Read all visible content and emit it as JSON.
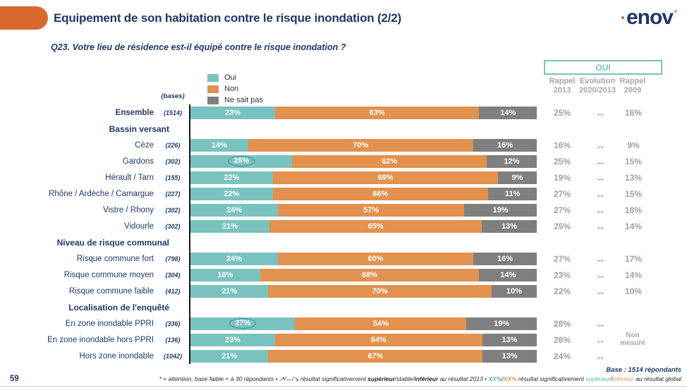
{
  "colors": {
    "navy": "#1F3864",
    "teal": "#79C2BF",
    "orange": "#E2914E",
    "gray": "#7F7F7F",
    "pill_orange": "#D7692F",
    "muted_gray": "#A6A6A6",
    "circle_teal": "#2E8F8C"
  },
  "header": {
    "title": "Equipement de son habitation contre le risque inondation (2/2)",
    "logo_text": "enov"
  },
  "question": "Q23. Votre lieu de résidence est-il équipé contre le risque inondation ?",
  "legend": [
    {
      "label": "Oui",
      "color": "#79C2BF"
    },
    {
      "label": "Non",
      "color": "#E2914E"
    },
    {
      "label": "Ne sait pas",
      "color": "#7F7F7F"
    }
  ],
  "bases_label": "(bases)",
  "right_columns": {
    "box_label": "OUI",
    "col1_line1": "Rappel",
    "col1_line2": "2013",
    "col2_line1": "Evolution",
    "col2_line2": "2020/2013",
    "col3_line1": "Rappel",
    "col3_line2": "2009",
    "non_mesure": "Non mesuré"
  },
  "rows": [
    {
      "type": "data",
      "label": "Ensemble",
      "bold": true,
      "base": "(1514)",
      "oui": 23,
      "non": 63,
      "nsp": 14,
      "circled": false,
      "r2013": "25%",
      "evo": "↔",
      "r2009": "16%"
    },
    {
      "type": "header",
      "label": "Bassin versant"
    },
    {
      "type": "data",
      "label": "Cèze",
      "bold": false,
      "base": "(226)",
      "oui": 14,
      "non": 70,
      "nsp": 16,
      "circled": false,
      "r2013": "16%",
      "evo": "↔",
      "r2009": "9%"
    },
    {
      "type": "data",
      "label": "Gardons",
      "bold": false,
      "base": "(302)",
      "oui": 26,
      "non": 62,
      "nsp": 12,
      "circled": true,
      "r2013": "25%",
      "evo": "↔",
      "r2009": "15%"
    },
    {
      "type": "data",
      "label": "Hérault / Tarn",
      "bold": false,
      "base": "(155)",
      "oui": 22,
      "non": 69,
      "nsp": 9,
      "circled": false,
      "r2013": "19%",
      "evo": "↔",
      "r2009": "13%"
    },
    {
      "type": "data",
      "label": "Rhône / Ardèche / Camargue",
      "bold": false,
      "base": "(227)",
      "oui": 22,
      "non": 66,
      "nsp": 11,
      "circled": false,
      "r2013": "27%",
      "evo": "↔",
      "r2009": "15%"
    },
    {
      "type": "data",
      "label": "Vistre / Rhony",
      "bold": false,
      "base": "(302)",
      "oui": 24,
      "non": 57,
      "nsp": 19,
      "circled": false,
      "r2013": "27%",
      "evo": "↔",
      "r2009": "18%"
    },
    {
      "type": "data",
      "label": "Vidourle",
      "bold": false,
      "base": "(302)",
      "oui": 21,
      "non": 65,
      "nsp": 13,
      "circled": false,
      "r2013": "25%",
      "evo": "↔",
      "r2009": "14%"
    },
    {
      "type": "header",
      "label": "Niveau de risque communal"
    },
    {
      "type": "data",
      "label": "Risque commune fort",
      "bold": false,
      "base": "(798)",
      "oui": 24,
      "non": 60,
      "nsp": 16,
      "circled": false,
      "r2013": "27%",
      "evo": "↔",
      "r2009": "17%"
    },
    {
      "type": "data",
      "label": "Risque commune moyen",
      "bold": false,
      "base": "(304)",
      "oui": 18,
      "non": 68,
      "nsp": 14,
      "circled": false,
      "r2013": "23%",
      "evo": "↔",
      "r2009": "14%"
    },
    {
      "type": "data",
      "label": "Risque commune faible",
      "bold": false,
      "base": "(412)",
      "oui": 21,
      "non": 70,
      "nsp": 10,
      "circled": false,
      "r2013": "22%",
      "evo": "↔",
      "r2009": "10%"
    },
    {
      "type": "header",
      "label": "Localisation de l'enquêté"
    },
    {
      "type": "data",
      "label": "En zone inondable PPRI",
      "bold": false,
      "base": "(336)",
      "oui": 27,
      "non": 54,
      "nsp": 19,
      "circled": true,
      "r2013": "28%",
      "evo": "↔",
      "r2009": ""
    },
    {
      "type": "data",
      "label": "En zone inondable hors PPRI",
      "bold": false,
      "base": "(136)",
      "oui": 23,
      "non": 64,
      "nsp": 13,
      "circled": false,
      "r2013": "26%",
      "evo": "↔",
      "r2009": ""
    },
    {
      "type": "data",
      "label": "Hors zone inondable",
      "bold": false,
      "base": "(1042)",
      "oui": 21,
      "non": 67,
      "nsp": 13,
      "circled": false,
      "r2013": "24%",
      "evo": "↔",
      "r2009": ""
    }
  ],
  "footer": {
    "page_number": "59",
    "base_note": "Base : 1514 répondants",
    "note_part1": "* = attention, base faible < à 30 répondants • ",
    "note_arrows": "↗/↔/↘",
    "note_part2": " résultat significativement ",
    "note_sup_bold": "supérieur",
    "note_stable": "/stable/",
    "note_inf_bold": "inférieur",
    "note_part3": " au résultat 2013 • ",
    "note_xx_teal": "XX%",
    "note_slash1": "/",
    "note_xx_orange": "XX%",
    "note_part4": " résultat significativement ",
    "note_sup_teal": "supérieur",
    "note_slash2": "/",
    "note_inf_orange": "inférieur",
    "note_part5": " au résultat global"
  },
  "chart_data": {
    "type": "bar",
    "orientation": "horizontal-stacked",
    "title": "Equipement de son habitation contre le risque inondation (2/2)",
    "question": "Q23. Votre lieu de résidence est-il équipé contre le risque inondation ?",
    "legend_position": "top",
    "xlim": [
      0,
      100
    ],
    "categories": [
      "Ensemble",
      "Cèze",
      "Gardons",
      "Hérault / Tarn",
      "Rhône / Ardèche / Camargue",
      "Vistre / Rhony",
      "Vidourle",
      "Risque commune fort",
      "Risque commune moyen",
      "Risque commune faible",
      "En zone inondable PPRI",
      "En zone inondable hors PPRI",
      "Hors zone inondable"
    ],
    "group_headers": [
      "Bassin versant",
      "Niveau de risque communal",
      "Localisation de l'enquêté"
    ],
    "bases": [
      1514,
      226,
      302,
      155,
      227,
      302,
      302,
      798,
      304,
      412,
      336,
      136,
      1042
    ],
    "series": [
      {
        "name": "Oui",
        "values": [
          23,
          14,
          26,
          22,
          22,
          24,
          21,
          24,
          18,
          21,
          27,
          23,
          21
        ]
      },
      {
        "name": "Non",
        "values": [
          63,
          70,
          62,
          69,
          66,
          57,
          65,
          60,
          68,
          70,
          54,
          64,
          67
        ]
      },
      {
        "name": "Ne sait pas",
        "values": [
          14,
          16,
          12,
          9,
          11,
          19,
          13,
          16,
          14,
          10,
          19,
          13,
          13
        ]
      }
    ],
    "rappel_2013_oui": [
      25,
      16,
      25,
      19,
      27,
      27,
      25,
      27,
      23,
      22,
      28,
      26,
      24
    ],
    "evolution_2020_2013": [
      "stable",
      "stable",
      "stable",
      "stable",
      "stable",
      "stable",
      "stable",
      "stable",
      "stable",
      "stable",
      "stable",
      "stable",
      "stable"
    ],
    "rappel_2009_oui": [
      16,
      9,
      15,
      13,
      15,
      18,
      14,
      17,
      14,
      10,
      null,
      null,
      null
    ],
    "rappel_2009_note": "Non mesuré",
    "circled_values": [
      "Gardons Oui 26%",
      "En zone inondable PPRI Oui 27%"
    ]
  }
}
